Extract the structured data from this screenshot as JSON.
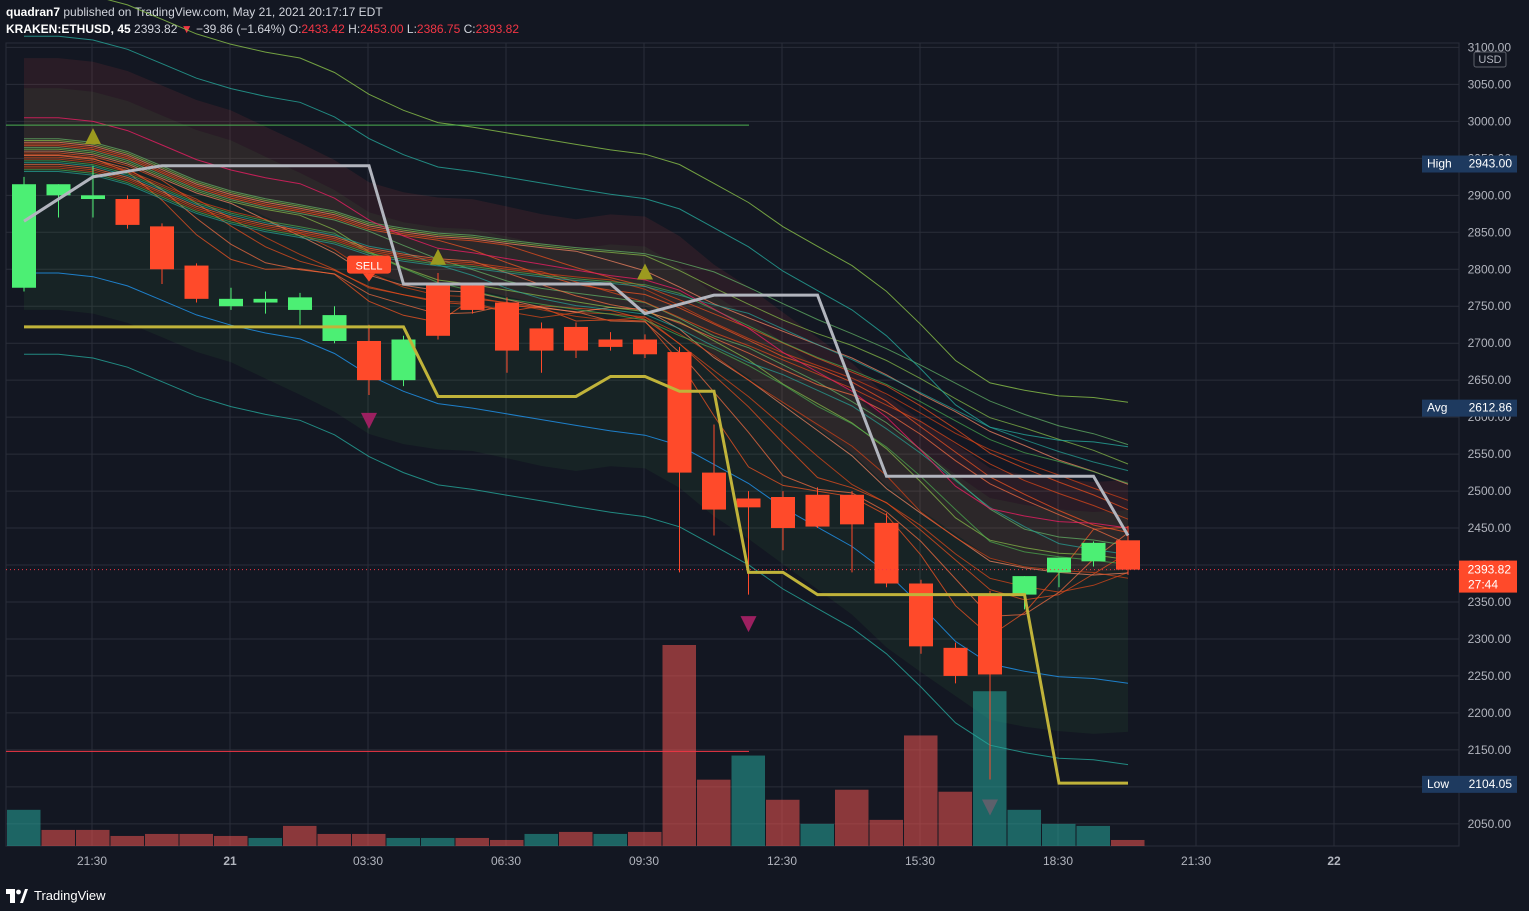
{
  "header": {
    "author": "quadran7",
    "published": "published on TradingView.com, May 21, 2021 20:17:17 EDT",
    "symbol": "KRAKEN:ETHUSD, 45",
    "last": "2393.82",
    "change_arrow": "▼",
    "change": "−39.86 (−1.64%)",
    "o_label": "O:",
    "o": "2433.42",
    "h_label": "H:",
    "h": "2453.00",
    "l_label": "L:",
    "l": "2386.75",
    "c_label": "C:",
    "c": "2393.82"
  },
  "footer": {
    "brand": "TradingView",
    "logo_icon": "tradingview-logo-icon"
  },
  "colors": {
    "bg": "#131722",
    "up": "#4cef74",
    "down": "#ff4a2a",
    "grid": "#2a2e39",
    "text": "#b2b5be"
  },
  "chart_data": {
    "type": "candlestick",
    "currency": "USD",
    "ylim": [
      2020,
      3106
    ],
    "y_ticks": [
      2050,
      2100,
      2150,
      2200,
      2250,
      2300,
      2350,
      2400,
      2450,
      2500,
      2550,
      2600,
      2650,
      2700,
      2750,
      2800,
      2850,
      2900,
      2950,
      3000,
      3050,
      3100
    ],
    "y_tick_labels": [
      "2050.00",
      "2100.00",
      "2150.00",
      "2200.00",
      "2250.00",
      "2300.00",
      "2350.00",
      "2400.00",
      "2450.00",
      "2500.00",
      "2550.00",
      "2600.00",
      "2650.00",
      "2700.00",
      "2750.00",
      "2800.00",
      "2850.00",
      "2900.00",
      "2950.00",
      "3000.00",
      "3050.00",
      "3100.00"
    ],
    "x_tick_labels": [
      {
        "label": "21:30",
        "slot": 2
      },
      {
        "label": "21",
        "slot": 6
      },
      {
        "label": "03:30",
        "slot": 10
      },
      {
        "label": "06:30",
        "slot": 14
      },
      {
        "label": "09:30",
        "slot": 18
      },
      {
        "label": "12:30",
        "slot": 22
      },
      {
        "label": "15:30",
        "slot": 26
      },
      {
        "label": "18:30",
        "slot": 30
      },
      {
        "label": "21:30",
        "slot": 34
      },
      {
        "label": "22",
        "slot": 38
      }
    ],
    "candles": [
      {
        "o": 2775,
        "h": 2925,
        "l": 2770,
        "c": 2915
      },
      {
        "o": 2900,
        "h": 2915,
        "l": 2870,
        "c": 2915
      },
      {
        "o": 2895,
        "h": 2940,
        "l": 2870,
        "c": 2900
      },
      {
        "o": 2895,
        "h": 2900,
        "l": 2855,
        "c": 2860
      },
      {
        "o": 2858,
        "h": 2862,
        "l": 2780,
        "c": 2800
      },
      {
        "o": 2805,
        "h": 2808,
        "l": 2755,
        "c": 2760
      },
      {
        "o": 2750,
        "h": 2775,
        "l": 2745,
        "c": 2760
      },
      {
        "o": 2755,
        "h": 2770,
        "l": 2740,
        "c": 2760
      },
      {
        "o": 2745,
        "h": 2768,
        "l": 2725,
        "c": 2762
      },
      {
        "o": 2703,
        "h": 2750,
        "l": 2700,
        "c": 2738
      },
      {
        "o": 2703,
        "h": 2725,
        "l": 2630,
        "c": 2650
      },
      {
        "o": 2650,
        "h": 2710,
        "l": 2642,
        "c": 2705
      },
      {
        "o": 2780,
        "h": 2795,
        "l": 2705,
        "c": 2710
      },
      {
        "o": 2778,
        "h": 2782,
        "l": 2740,
        "c": 2745
      },
      {
        "o": 2755,
        "h": 2762,
        "l": 2660,
        "c": 2690
      },
      {
        "o": 2720,
        "h": 2728,
        "l": 2660,
        "c": 2690
      },
      {
        "o": 2722,
        "h": 2728,
        "l": 2680,
        "c": 2690
      },
      {
        "o": 2705,
        "h": 2715,
        "l": 2690,
        "c": 2695
      },
      {
        "o": 2705,
        "h": 2712,
        "l": 2680,
        "c": 2685
      },
      {
        "o": 2688,
        "h": 2695,
        "l": 2390,
        "c": 2525
      },
      {
        "o": 2525,
        "h": 2590,
        "l": 2440,
        "c": 2475
      },
      {
        "o": 2490,
        "h": 2500,
        "l": 2360,
        "c": 2478
      },
      {
        "o": 2492,
        "h": 2500,
        "l": 2420,
        "c": 2450
      },
      {
        "o": 2495,
        "h": 2505,
        "l": 2450,
        "c": 2452
      },
      {
        "o": 2495,
        "h": 2500,
        "l": 2390,
        "c": 2455
      },
      {
        "o": 2457,
        "h": 2470,
        "l": 2370,
        "c": 2375
      },
      {
        "o": 2375,
        "h": 2380,
        "l": 2280,
        "c": 2290
      },
      {
        "o": 2288,
        "h": 2295,
        "l": 2240,
        "c": 2250
      },
      {
        "o": 2360,
        "h": 2365,
        "l": 2110,
        "c": 2252
      },
      {
        "o": 2360,
        "h": 2385,
        "l": 2340,
        "c": 2385
      },
      {
        "o": 2390,
        "h": 2410,
        "l": 2370,
        "c": 2410
      },
      {
        "o": 2405,
        "h": 2432,
        "l": 2398,
        "c": 2430
      },
      {
        "o": 2433.42,
        "h": 2453,
        "l": 2386.75,
        "c": 2393.82
      }
    ],
    "volume_relative": [
      0.18,
      0.08,
      0.08,
      0.05,
      0.06,
      0.06,
      0.05,
      0.04,
      0.1,
      0.06,
      0.06,
      0.04,
      0.04,
      0.04,
      0.03,
      0.06,
      0.07,
      0.06,
      0.07,
      1.0,
      0.33,
      0.45,
      0.23,
      0.11,
      0.28,
      0.13,
      0.55,
      0.27,
      0.77,
      0.18,
      0.11,
      0.1,
      0.03
    ],
    "volume_up": [
      true,
      false,
      false,
      false,
      false,
      false,
      false,
      true,
      false,
      false,
      false,
      true,
      true,
      false,
      false,
      true,
      false,
      true,
      false,
      false,
      false,
      true,
      false,
      true,
      false,
      false,
      false,
      false,
      true,
      true,
      true,
      true,
      false
    ],
    "pivot_price": 2393.82,
    "pivot_time": "27:44",
    "high_label": "High",
    "high_value": "2943.00",
    "avg_label": "Avg",
    "avg_value": "2612.86",
    "low_label": "Low",
    "low_value": "2104.05",
    "sell_label": "SELL"
  }
}
